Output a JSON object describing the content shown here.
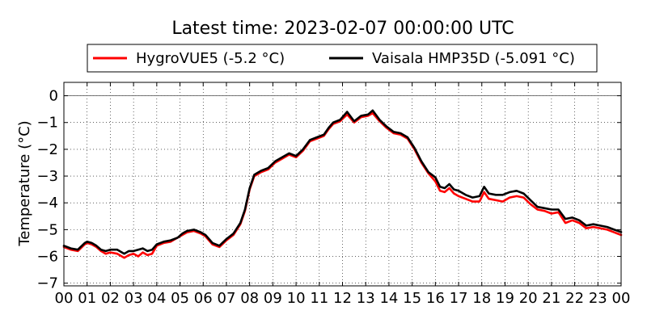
{
  "chart_data": {
    "type": "line",
    "title": "Latest time: 2023-02-07 00:00:00 UTC",
    "xlabel": "",
    "ylabel": "Temperature (°C)",
    "xlim": [
      0,
      24
    ],
    "ylim": [
      -7.1,
      0.5
    ],
    "grid": true,
    "legend_position": "top",
    "zero_line": 0,
    "x_tick_labels": [
      "00",
      "01",
      "02",
      "03",
      "04",
      "05",
      "06",
      "07",
      "08",
      "09",
      "10",
      "11",
      "12",
      "13",
      "14",
      "15",
      "16",
      "17",
      "18",
      "19",
      "20",
      "21",
      "22",
      "23",
      "00"
    ],
    "y_ticks": [
      0,
      -1,
      -2,
      -3,
      -4,
      -5,
      -6,
      -7
    ],
    "y_tick_labels": [
      "0",
      "−1",
      "−2",
      "−3",
      "−4",
      "−5",
      "−6",
      "−7"
    ],
    "series": [
      {
        "name": "HygroVUE5 (-5.2 °C)",
        "color": "#ff0000",
        "x": [
          0,
          0.3,
          0.6,
          0.9,
          1.0,
          1.2,
          1.4,
          1.6,
          1.8,
          2.0,
          2.3,
          2.6,
          2.8,
          3.0,
          3.2,
          3.4,
          3.6,
          3.8,
          4.0,
          4.3,
          4.6,
          4.9,
          5.1,
          5.3,
          5.6,
          5.9,
          6.1,
          6.4,
          6.7,
          7.0,
          7.3,
          7.6,
          7.8,
          8.0,
          8.2,
          8.5,
          8.8,
          9.1,
          9.4,
          9.7,
          10.0,
          10.3,
          10.6,
          10.9,
          11.2,
          11.4,
          11.6,
          11.9,
          12.2,
          12.5,
          12.8,
          13.1,
          13.3,
          13.6,
          13.9,
          14.2,
          14.5,
          14.8,
          15.1,
          15.4,
          15.7,
          16.0,
          16.2,
          16.4,
          16.6,
          16.8,
          17.0,
          17.3,
          17.6,
          17.9,
          18.1,
          18.3,
          18.6,
          18.9,
          19.2,
          19.5,
          19.8,
          20.1,
          20.4,
          20.7,
          21.0,
          21.3,
          21.6,
          21.9,
          22.2,
          22.5,
          22.8,
          23.1,
          23.4,
          23.7,
          24.0
        ],
        "values": [
          -5.65,
          -5.75,
          -5.8,
          -5.55,
          -5.5,
          -5.55,
          -5.65,
          -5.8,
          -5.9,
          -5.85,
          -5.9,
          -6.05,
          -5.95,
          -5.9,
          -6.0,
          -5.85,
          -5.95,
          -5.9,
          -5.6,
          -5.5,
          -5.45,
          -5.3,
          -5.2,
          -5.1,
          -5.05,
          -5.15,
          -5.25,
          -5.55,
          -5.65,
          -5.4,
          -5.2,
          -4.8,
          -4.3,
          -3.5,
          -3.0,
          -2.85,
          -2.75,
          -2.5,
          -2.35,
          -2.2,
          -2.3,
          -2.05,
          -1.7,
          -1.6,
          -1.5,
          -1.25,
          -1.05,
          -0.95,
          -0.7,
          -1.0,
          -0.8,
          -0.75,
          -0.65,
          -0.95,
          -1.2,
          -1.4,
          -1.45,
          -1.6,
          -2.0,
          -2.5,
          -2.9,
          -3.2,
          -3.55,
          -3.6,
          -3.45,
          -3.65,
          -3.75,
          -3.85,
          -3.95,
          -3.95,
          -3.6,
          -3.85,
          -3.9,
          -3.95,
          -3.8,
          -3.75,
          -3.8,
          -4.05,
          -4.25,
          -4.3,
          -4.4,
          -4.35,
          -4.75,
          -4.65,
          -4.75,
          -4.95,
          -4.9,
          -4.95,
          -5.0,
          -5.1,
          -5.2
        ]
      },
      {
        "name": "Vaisala HMP35D (-5.091 °C)",
        "color": "#000000",
        "x": [
          0,
          0.3,
          0.6,
          0.9,
          1.0,
          1.2,
          1.4,
          1.6,
          1.8,
          2.0,
          2.3,
          2.6,
          2.8,
          3.0,
          3.2,
          3.4,
          3.6,
          3.8,
          4.0,
          4.3,
          4.6,
          4.9,
          5.1,
          5.3,
          5.6,
          5.9,
          6.1,
          6.4,
          6.7,
          7.0,
          7.3,
          7.6,
          7.8,
          8.0,
          8.2,
          8.5,
          8.8,
          9.1,
          9.4,
          9.7,
          10.0,
          10.3,
          10.6,
          10.9,
          11.2,
          11.4,
          11.6,
          11.9,
          12.2,
          12.5,
          12.8,
          13.1,
          13.3,
          13.6,
          13.9,
          14.2,
          14.5,
          14.8,
          15.1,
          15.4,
          15.7,
          16.0,
          16.2,
          16.4,
          16.6,
          16.8,
          17.0,
          17.3,
          17.6,
          17.9,
          18.1,
          18.3,
          18.6,
          18.9,
          19.2,
          19.5,
          19.8,
          20.1,
          20.4,
          20.7,
          21.0,
          21.3,
          21.6,
          21.9,
          22.2,
          22.5,
          22.8,
          23.1,
          23.4,
          23.7,
          24.0
        ],
        "values": [
          -5.6,
          -5.7,
          -5.75,
          -5.5,
          -5.45,
          -5.5,
          -5.6,
          -5.75,
          -5.8,
          -5.75,
          -5.75,
          -5.9,
          -5.8,
          -5.8,
          -5.75,
          -5.7,
          -5.8,
          -5.75,
          -5.55,
          -5.45,
          -5.4,
          -5.3,
          -5.15,
          -5.05,
          -5.0,
          -5.1,
          -5.2,
          -5.5,
          -5.6,
          -5.35,
          -5.15,
          -4.75,
          -4.25,
          -3.45,
          -2.95,
          -2.8,
          -2.7,
          -2.45,
          -2.3,
          -2.15,
          -2.25,
          -2.0,
          -1.65,
          -1.55,
          -1.45,
          -1.2,
          -1.0,
          -0.9,
          -0.6,
          -0.95,
          -0.75,
          -0.7,
          -0.55,
          -0.9,
          -1.15,
          -1.35,
          -1.4,
          -1.55,
          -1.95,
          -2.45,
          -2.85,
          -3.05,
          -3.4,
          -3.45,
          -3.3,
          -3.5,
          -3.55,
          -3.7,
          -3.8,
          -3.75,
          -3.4,
          -3.65,
          -3.7,
          -3.7,
          -3.6,
          -3.55,
          -3.65,
          -3.9,
          -4.15,
          -4.2,
          -4.25,
          -4.25,
          -4.6,
          -4.55,
          -4.65,
          -4.85,
          -4.8,
          -4.85,
          -4.9,
          -5.0,
          -5.09
        ]
      }
    ]
  }
}
